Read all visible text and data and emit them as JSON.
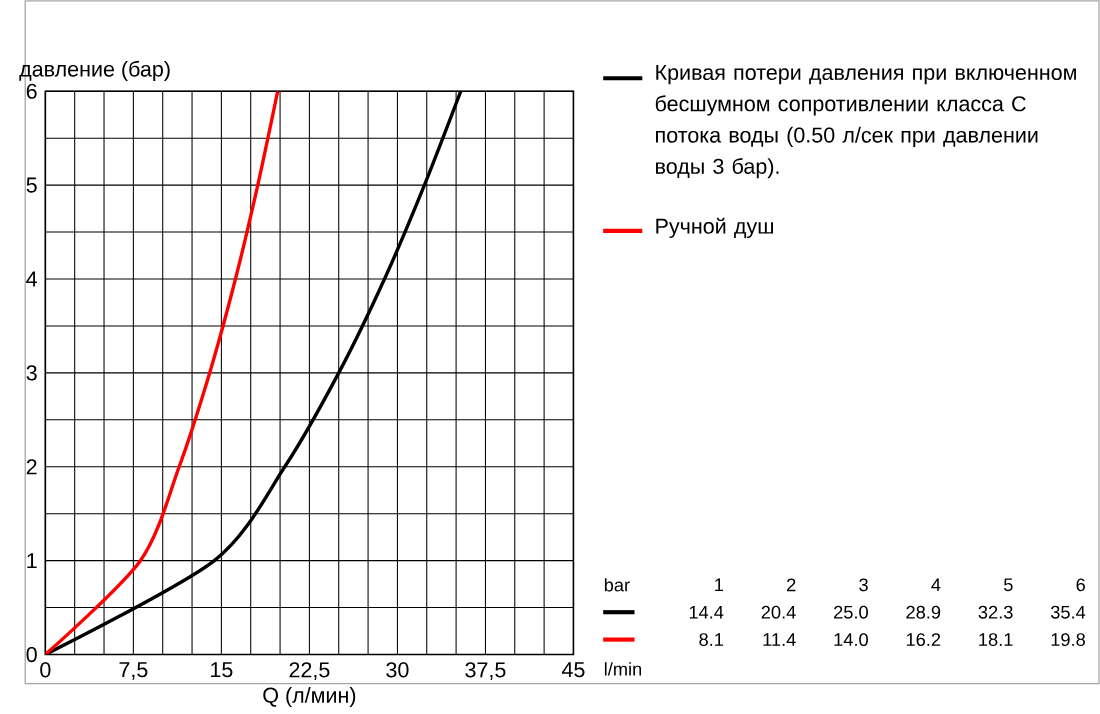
{
  "chart_data": {
    "type": "line",
    "xlabel": "Q (л/мин)",
    "ylabel": "давление (бар)",
    "series": [
      {
        "name": "Кривая потери давления при включенном бесшумном сопротивлении класса С потока воды (0.50 л/сек при давлении воды 3 бар).",
        "color": "#000000",
        "x": [
          0,
          14.4,
          20.4,
          25.0,
          28.9,
          32.3,
          35.4
        ],
        "values": [
          0,
          1,
          2,
          3,
          4,
          5,
          6
        ]
      },
      {
        "name": "Ручной душ",
        "color": "#ff0000",
        "x": [
          0,
          8.1,
          11.4,
          14.0,
          16.2,
          18.1,
          19.8
        ],
        "values": [
          0,
          1,
          2,
          3,
          4,
          5,
          6
        ]
      }
    ],
    "xlim": [
      0,
      45
    ],
    "ylim": [
      0,
      6
    ],
    "xticks": [
      0,
      {
        "value": 2.5,
        "label": null
      },
      {
        "value": 5,
        "label": null
      },
      {
        "value": 7.5,
        "label": "7,5"
      },
      {
        "value": 10,
        "label": null
      },
      {
        "value": 12.5,
        "label": null
      },
      15,
      {
        "value": 17.5,
        "label": null
      },
      {
        "value": 20,
        "label": null
      },
      {
        "value": 22.5,
        "label": "22,5"
      },
      {
        "value": 25,
        "label": null
      },
      {
        "value": 27.5,
        "label": null
      },
      30,
      {
        "value": 32.5,
        "label": null
      },
      {
        "value": 35,
        "label": null
      },
      {
        "value": 37.5,
        "label": "37,5"
      },
      {
        "value": 40,
        "label": null
      },
      {
        "value": 42.5,
        "label": null
      },
      45
    ],
    "yticks": [
      0,
      {
        "value": 0.5,
        "label": null
      },
      1,
      {
        "value": 1.5,
        "label": null
      },
      2,
      {
        "value": 2.5,
        "label": null
      },
      3,
      {
        "value": 3.5,
        "label": null
      },
      4,
      {
        "value": 4.5,
        "label": null
      },
      5,
      {
        "value": 5.5,
        "label": null
      },
      6
    ],
    "grid": true,
    "legend": "right",
    "annotations": [
      "bar",
      "1",
      "2",
      "3",
      "4",
      "5",
      "6",
      "14.4",
      "20.4",
      "25.0",
      "28.9",
      "32.3",
      "35.4",
      "8.1",
      "11.4",
      "14.0",
      "16.2",
      "18.1",
      "19.8",
      "l/min"
    ]
  }
}
